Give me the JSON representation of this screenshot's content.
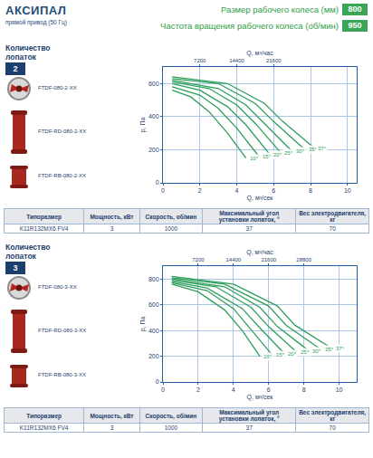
{
  "document": {
    "header": {
      "title": "АКСИПАЛ",
      "subtitle": "прямой привод (50 Гц)",
      "params": [
        {
          "label": "Размер рабочего колеса (мм)",
          "value": 800
        },
        {
          "label": "Частота вращения рабочего колеса (об/мин)",
          "value": 950
        }
      ]
    },
    "sections": [
      {
        "blades_label": "Количество лопаток",
        "blades": 2,
        "models": [
          "FTDF-080-2-XX",
          "FTDF-RD-080-2-XX",
          "FTDF-RB-080-2-XX"
        ],
        "table": {
          "header": [
            "Типоразмер",
            "Мощность, кВт",
            "Скорость, об/мин",
            "Максимальный угол установки лопаток, °",
            "Вес электродвигателя, кг"
          ],
          "rows": [
            [
              "K11R132MX6 FV4",
              3,
              1000,
              37,
              70
            ]
          ]
        }
      },
      {
        "blades_label": "Количество лопаток",
        "blades": 3,
        "models": [
          "FTDF-080-3-XX",
          "FTDF-RD-080-3-XX",
          "FTDF-RB-080-3-XX"
        ],
        "table": {
          "header": [
            "Типоразмер",
            "Мощность, кВт",
            "Скорость, об/мин",
            "Максимальный угол установки лопаток, °",
            "Вес электродвигателя, кг"
          ],
          "rows": [
            [
              "K11R132MX6 FV4",
              3,
              1000,
              37,
              70
            ]
          ]
        }
      }
    ]
  },
  "chart_data": [
    {
      "type": "line",
      "x_label": "Q, м³/сек",
      "x2_label": "Q, м³/час",
      "y_label": "p, Па",
      "xlim": [
        0,
        10.5
      ],
      "xticks": [
        0,
        2,
        4,
        6,
        8,
        10
      ],
      "x2lim": [
        0,
        37800
      ],
      "x2ticks": [
        7200,
        14400,
        21600
      ],
      "ylim": [
        0,
        700
      ],
      "yticks": [
        0,
        200,
        400,
        600
      ],
      "grid": true,
      "color": "#2e9e5b",
      "series": [
        {
          "name": "10°",
          "x": [
            0.5,
            1.5,
            2.5,
            3.5,
            4.5
          ],
          "values": [
            560,
            520,
            430,
            300,
            150
          ]
        },
        {
          "name": "15°",
          "x": [
            0.5,
            2,
            3,
            4,
            5.2
          ],
          "values": [
            580,
            530,
            450,
            330,
            160
          ]
        },
        {
          "name": "20°",
          "x": [
            0.5,
            2,
            3.5,
            4.5,
            5.8
          ],
          "values": [
            600,
            560,
            460,
            350,
            170
          ]
        },
        {
          "name": "25°",
          "x": [
            0.5,
            2.5,
            4,
            5,
            6.4
          ],
          "values": [
            610,
            570,
            470,
            360,
            180
          ]
        },
        {
          "name": "30°",
          "x": [
            0.5,
            3,
            4.5,
            5.5,
            7
          ],
          "values": [
            620,
            570,
            470,
            360,
            190
          ]
        },
        {
          "name": "35°",
          "x": [
            0.5,
            3,
            5,
            6,
            7.7
          ],
          "values": [
            630,
            600,
            480,
            370,
            200
          ]
        },
        {
          "name": "37°",
          "x": [
            0.5,
            3.5,
            5.5,
            6.5,
            8.2
          ],
          "values": [
            640,
            600,
            480,
            370,
            210
          ]
        }
      ]
    },
    {
      "type": "line",
      "x_label": "Q, м³/сек",
      "x2_label": "Q, м³/час",
      "y_label": "p, Па",
      "xlim": [
        0,
        11
      ],
      "xticks": [
        0,
        2,
        4,
        6,
        8,
        10
      ],
      "x2lim": [
        0,
        39600
      ],
      "x2ticks": [
        7200,
        14400,
        21600,
        28800
      ],
      "ylim": [
        0,
        900
      ],
      "yticks": [
        0,
        200,
        400,
        600,
        800
      ],
      "grid": true,
      "color": "#2e9e5b",
      "series": [
        {
          "name": "10°",
          "x": [
            0.5,
            2,
            3.5,
            4.5,
            5.5
          ],
          "values": [
            760,
            700,
            560,
            400,
            200
          ]
        },
        {
          "name": "15°",
          "x": [
            0.5,
            2.5,
            4,
            5,
            6.2
          ],
          "values": [
            770,
            710,
            570,
            410,
            210
          ]
        },
        {
          "name": "20°",
          "x": [
            0.5,
            2.5,
            4.5,
            5.5,
            6.9
          ],
          "values": [
            780,
            730,
            570,
            420,
            220
          ]
        },
        {
          "name": "25°",
          "x": [
            0.5,
            3,
            5,
            6,
            7.6
          ],
          "values": [
            790,
            740,
            580,
            430,
            230
          ]
        },
        {
          "name": "30°",
          "x": [
            0.5,
            3.5,
            5.5,
            6.5,
            8.3
          ],
          "values": [
            800,
            740,
            580,
            430,
            240
          ]
        },
        {
          "name": "35°",
          "x": [
            0.5,
            3.5,
            6,
            7,
            9
          ],
          "values": [
            810,
            760,
            590,
            440,
            250
          ]
        },
        {
          "name": "37°",
          "x": [
            0.5,
            4,
            6.5,
            7.5,
            9.6
          ],
          "values": [
            820,
            760,
            590,
            440,
            260
          ]
        }
      ]
    }
  ]
}
